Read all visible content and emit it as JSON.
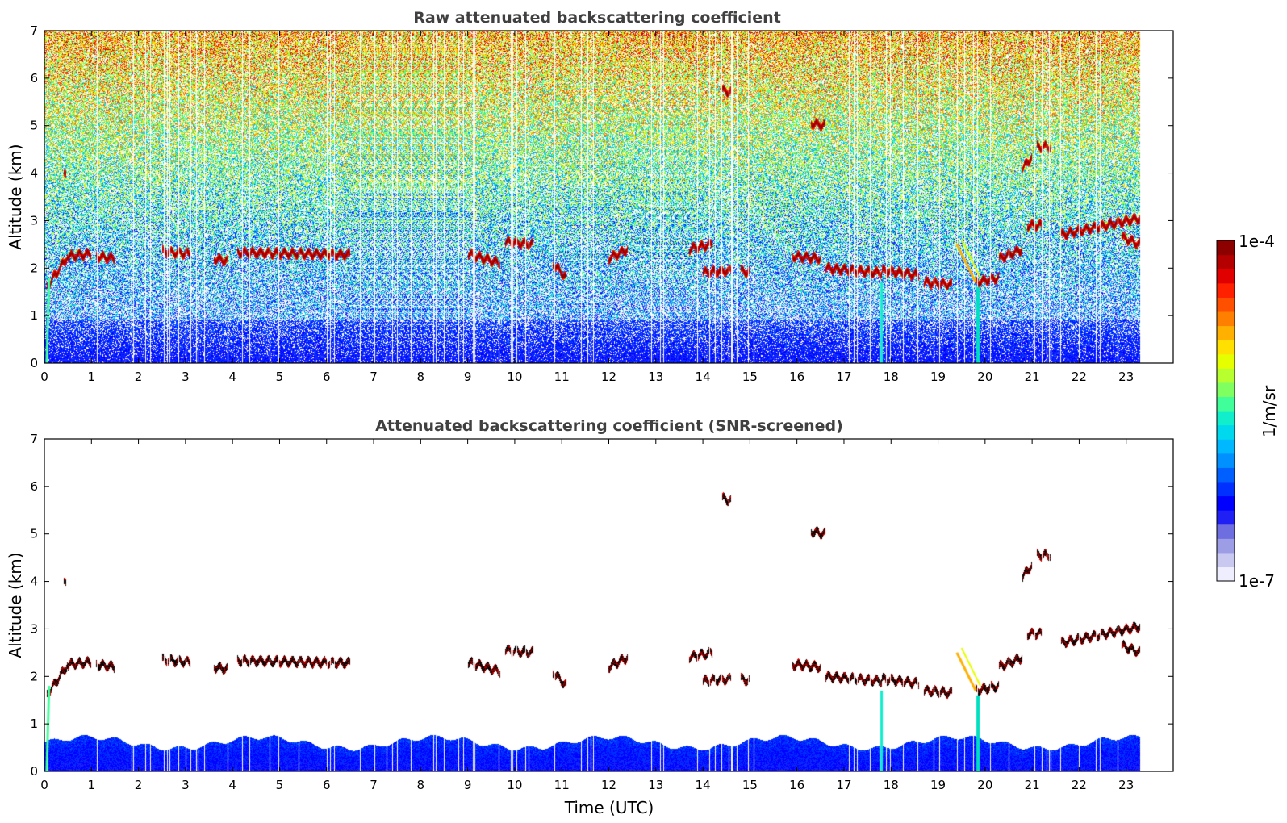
{
  "chart_data": [
    {
      "type": "heatmap",
      "title": "Raw attenuated backscattering coefficient",
      "xlabel": "",
      "ylabel": "Altitude (km)",
      "xlim": [
        0,
        24
      ],
      "ylim": [
        0,
        7
      ],
      "x_ticks": [
        "0",
        "1",
        "2",
        "3",
        "4",
        "5",
        "6",
        "7",
        "8",
        "9",
        "10",
        "11",
        "12",
        "13",
        "14",
        "15",
        "16",
        "17",
        "18",
        "19",
        "20",
        "21",
        "22",
        "23"
      ],
      "y_ticks": [
        "0",
        "1",
        "2",
        "3",
        "4",
        "5",
        "6",
        "7"
      ],
      "data_end_time": 23.3,
      "screened": false,
      "cloud_layers": [
        {
          "t0": 0.05,
          "t1": 0.5,
          "alt0": 1.6,
          "alt1": 2.25
        },
        {
          "t0": 0.5,
          "t1": 1.0,
          "alt0": 2.25,
          "alt1": 2.3
        },
        {
          "t0": 1.1,
          "t1": 1.5,
          "alt0": 2.25,
          "alt1": 2.2
        },
        {
          "t0": 2.5,
          "t1": 3.1,
          "alt0": 2.35,
          "alt1": 2.3
        },
        {
          "t0": 3.6,
          "t1": 3.9,
          "alt0": 2.2,
          "alt1": 2.15
        },
        {
          "t0": 4.1,
          "t1": 6.5,
          "alt0": 2.33,
          "alt1": 2.28
        },
        {
          "t0": 9.0,
          "t1": 9.7,
          "alt0": 2.3,
          "alt1": 2.1
        },
        {
          "t0": 9.8,
          "t1": 10.4,
          "alt0": 2.55,
          "alt1": 2.5
        },
        {
          "t0": 10.8,
          "t1": 11.1,
          "alt0": 2.1,
          "alt1": 1.8
        },
        {
          "t0": 12.0,
          "t1": 12.4,
          "alt0": 2.2,
          "alt1": 2.4
        },
        {
          "t0": 13.7,
          "t1": 14.2,
          "alt0": 2.4,
          "alt1": 2.5
        },
        {
          "t0": 14.0,
          "t1": 14.6,
          "alt0": 1.9,
          "alt1": 1.95
        },
        {
          "t0": 14.8,
          "t1": 15.0,
          "alt0": 1.95,
          "alt1": 1.9
        },
        {
          "t0": 15.9,
          "t1": 16.5,
          "alt0": 2.25,
          "alt1": 2.2
        },
        {
          "t0": 16.6,
          "t1": 17.8,
          "alt0": 2.0,
          "alt1": 1.9
        },
        {
          "t0": 17.8,
          "t1": 18.6,
          "alt0": 1.95,
          "alt1": 1.85
        },
        {
          "t0": 18.7,
          "t1": 19.3,
          "alt0": 1.7,
          "alt1": 1.65
        },
        {
          "t0": 19.8,
          "t1": 20.3,
          "alt0": 1.7,
          "alt1": 1.8
        },
        {
          "t0": 20.3,
          "t1": 20.8,
          "alt0": 2.2,
          "alt1": 2.4
        },
        {
          "t0": 20.9,
          "t1": 21.2,
          "alt0": 2.9,
          "alt1": 2.9
        },
        {
          "t0": 21.6,
          "t1": 23.3,
          "alt0": 2.7,
          "alt1": 3.05
        },
        {
          "t0": 22.9,
          "t1": 23.3,
          "alt0": 2.65,
          "alt1": 2.5
        },
        {
          "t0": 20.8,
          "t1": 21.0,
          "alt0": 4.1,
          "alt1": 4.35
        },
        {
          "t0": 21.1,
          "t1": 21.4,
          "alt0": 4.55,
          "alt1": 4.55
        },
        {
          "t0": 16.3,
          "t1": 16.6,
          "alt0": 5.05,
          "alt1": 5.0
        },
        {
          "t0": 14.4,
          "t1": 14.6,
          "alt0": 5.75,
          "alt1": 5.7
        },
        {
          "t0": 0.42,
          "t1": 0.47,
          "alt0": 3.95,
          "alt1": 3.95
        }
      ]
    },
    {
      "type": "heatmap",
      "title": "Attenuated backscattering coefficient (SNR-screened)",
      "xlabel": "Time (UTC)",
      "ylabel": "Altitude (km)",
      "xlim": [
        0,
        24
      ],
      "ylim": [
        0,
        7
      ],
      "x_ticks": [
        "0",
        "1",
        "2",
        "3",
        "4",
        "5",
        "6",
        "7",
        "8",
        "9",
        "10",
        "11",
        "12",
        "13",
        "14",
        "15",
        "16",
        "17",
        "18",
        "19",
        "20",
        "21",
        "22",
        "23"
      ],
      "y_ticks": [
        "0",
        "1",
        "2",
        "3",
        "4",
        "5",
        "6",
        "7"
      ],
      "data_end_time": 23.3,
      "screened": true,
      "boundary_layer_top_km": 0.6
    }
  ],
  "colorbar": {
    "label": "1/m/sr",
    "max_label": "1e-4",
    "min_label": "1e-7",
    "colors": [
      "#eeeeff",
      "#c8c8f0",
      "#9d9de6",
      "#6e6ee0",
      "#2020f5",
      "#0000ff",
      "#0030ff",
      "#0060ff",
      "#0090ff",
      "#00b8ff",
      "#00d8ee",
      "#10eecc",
      "#40ff9a",
      "#80ff60",
      "#b8ff30",
      "#e6ff00",
      "#ffe000",
      "#ffb000",
      "#ff8000",
      "#ff5000",
      "#ff2000",
      "#e00000",
      "#b40000",
      "#8c0000"
    ]
  }
}
